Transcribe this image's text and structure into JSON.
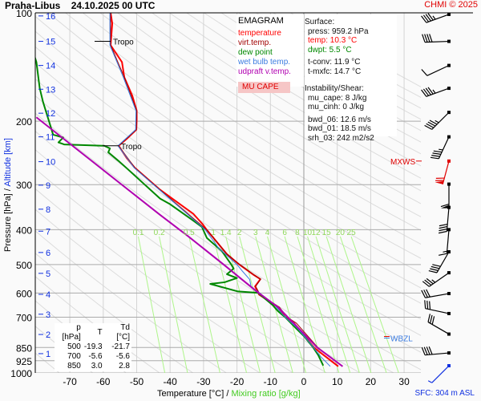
{
  "header": {
    "station": "Praha-Libus",
    "datetime": "24.10.2025 00 UTC",
    "credit": "CHMI © 2025"
  },
  "legend": {
    "title": "EMAGRAM",
    "items": [
      {
        "label": "temperature",
        "color": "#ff0000"
      },
      {
        "label": "virt.temp.",
        "color": "#a00000"
      },
      {
        "label": "dew point",
        "color": "#008800"
      },
      {
        "label": "wet bulb temp.",
        "color": "#3a7be0"
      },
      {
        "label": "udpraft v.temp.",
        "color": "#b000b0"
      }
    ],
    "mu_cape_label": "MU CAPE"
  },
  "info": {
    "surface_title": "Surface:",
    "press": "press: 959.2 hPa",
    "temp": "temp: 10.3 °C",
    "dwpt": "dwpt: 5.5 °C",
    "tconv": "t-conv: 11.9 °C",
    "tmxfc": "t-mxfc: 14.7 °C",
    "instab_title": "Instability/Shear:",
    "mu_cape": "mu_cape: 8 J/kg",
    "mu_cinh": "mu_cinh: 0 J/kg",
    "bwd_06": "bwd_06: 12.6 m/s",
    "bwd_01": "bwd_01: 18.5 m/s",
    "srh_03": "srh_03: 242 m2/s2"
  },
  "table": {
    "headers": [
      "p [hPa]",
      "T",
      "Td [°C]"
    ],
    "rows": [
      [
        "500",
        "-19.3",
        "-21.7"
      ],
      [
        "700",
        "-5.6",
        "-5.6"
      ],
      [
        "850",
        "3.0",
        "2.8"
      ]
    ]
  },
  "labels": {
    "xlabel_temp": "Temperature [°C]",
    "xlabel_sep": " / ",
    "xlabel_mix": "Mixing ratio [g/kg]",
    "ylabel_p": "Pressure [hPa]",
    "ylabel_sep": " / ",
    "ylabel_alt": "Altitude [km]",
    "sfc": "SFC: 304 m ASL",
    "mxws": "MXWS",
    "wbzl": "WBZL",
    "tropo": "Tropo"
  },
  "chart_data": {
    "type": "line",
    "title": "EMAGRAM",
    "xlabel": "Temperature [°C] / Mixing ratio [g/kg]",
    "ylabel": "Pressure [hPa] / Altitude [km]",
    "xlim": [
      -80.3,
      35
    ],
    "ylim": [
      1000,
      100
    ],
    "yscale": "log",
    "xticks": [
      -70,
      -60,
      -50,
      -40,
      -30,
      -20,
      -10,
      0,
      10,
      20,
      30
    ],
    "yticks": [
      100,
      200,
      300,
      400,
      500,
      600,
      700,
      850,
      925,
      1000
    ],
    "altitude_ticks": [
      {
        "km": 1,
        "p": 884
      },
      {
        "km": 2,
        "p": 782
      },
      {
        "km": 3,
        "p": 687
      },
      {
        "km": 4,
        "p": 605
      },
      {
        "km": 5,
        "p": 529
      },
      {
        "km": 6,
        "p": 463
      },
      {
        "km": 7,
        "p": 404
      },
      {
        "km": 8,
        "p": 351
      },
      {
        "km": 9,
        "p": 301
      },
      {
        "km": 10,
        "p": 259
      },
      {
        "km": 11,
        "p": 221
      },
      {
        "km": 12,
        "p": 190
      },
      {
        "km": 13,
        "p": 163
      },
      {
        "km": 14,
        "p": 140
      },
      {
        "km": 15,
        "p": 120
      },
      {
        "km": 16,
        "p": 102
      }
    ],
    "mixing_ratio_lines": [
      0.1,
      0.2,
      0.5,
      1,
      1.4,
      2,
      3,
      4,
      6,
      8,
      10,
      12,
      15,
      20,
      25
    ],
    "tropopause": [
      234,
      120
    ],
    "mxws_p": 258,
    "wbzl_p": 800,
    "series": [
      {
        "name": "temperature",
        "color": "#ff0000",
        "width": 2,
        "points": [
          [
            959,
            10.3
          ],
          [
            850,
            3.0
          ],
          [
            728,
            -2.9
          ],
          [
            700,
            -5.6
          ],
          [
            657,
            -7.7
          ],
          [
            606,
            -13.4
          ],
          [
            575,
            -14.6
          ],
          [
            549,
            -13
          ],
          [
            535,
            -14.9
          ],
          [
            500,
            -19.3
          ],
          [
            468,
            -23
          ],
          [
            401,
            -29
          ],
          [
            387,
            -30.2
          ],
          [
            362,
            -33
          ],
          [
            310,
            -43
          ],
          [
            269,
            -50.6
          ],
          [
            253,
            -53
          ],
          [
            234,
            -55.4
          ],
          [
            224,
            -53
          ],
          [
            211,
            -50.1
          ],
          [
            198,
            -50
          ],
          [
            187,
            -50
          ],
          [
            170,
            -51.3
          ],
          [
            151,
            -53.7
          ],
          [
            137,
            -54.4
          ],
          [
            123,
            -57.8
          ],
          [
            107,
            -57.3
          ],
          [
            100,
            -57.8
          ]
        ]
      },
      {
        "name": "virt.temp.",
        "color": "#a00000",
        "width": 1,
        "points": [
          [
            959,
            11.6
          ],
          [
            850,
            4.2
          ],
          [
            728,
            -2.2
          ],
          [
            700,
            -5.0
          ],
          [
            657,
            -7.3
          ],
          [
            606,
            -13.1
          ],
          [
            575,
            -14.4
          ],
          [
            549,
            -12.9
          ],
          [
            535,
            -14.8
          ],
          [
            500,
            -19.2
          ],
          [
            468,
            -23
          ],
          [
            401,
            -29
          ],
          [
            310,
            -43
          ],
          [
            269,
            -50.6
          ],
          [
            234,
            -55.4
          ],
          [
            211,
            -50.1
          ],
          [
            187,
            -50
          ],
          [
            151,
            -53.7
          ],
          [
            123,
            -57.8
          ],
          [
            100,
            -57.8
          ]
        ]
      },
      {
        "name": "dew point",
        "color": "#008800",
        "width": 2,
        "points": [
          [
            954,
            5.8
          ],
          [
            892,
            4.3
          ],
          [
            850,
            2.8
          ],
          [
            793,
            0.2
          ],
          [
            754,
            -2.2
          ],
          [
            700,
            -5.6
          ],
          [
            674,
            -7.7
          ],
          [
            647,
            -9.4
          ],
          [
            599,
            -13.7
          ],
          [
            594,
            -19.7
          ],
          [
            566,
            -28
          ],
          [
            560,
            -23.7
          ],
          [
            545,
            -20
          ],
          [
            532,
            -23
          ],
          [
            513,
            -21
          ],
          [
            500,
            -21.7
          ],
          [
            459,
            -24.5
          ],
          [
            422,
            -29
          ],
          [
            393,
            -30.5
          ],
          [
            378,
            -33
          ],
          [
            340,
            -40
          ],
          [
            328,
            -43
          ],
          [
            270,
            -53
          ],
          [
            257,
            -55.6
          ],
          [
            244,
            -58.5
          ],
          [
            238,
            -58
          ],
          [
            234,
            -59.7
          ],
          [
            232,
            -71.7
          ],
          [
            229,
            -73.4
          ],
          [
            222,
            -72
          ],
          [
            218,
            -75
          ],
          [
            206,
            -75.8
          ],
          [
            177,
            -78
          ],
          [
            162,
            -79
          ],
          [
            137,
            -80
          ],
          [
            128,
            -81
          ]
        ]
      },
      {
        "name": "wet bulb temp.",
        "color": "#3a7be0",
        "width": 1,
        "points": [
          [
            959,
            7.9
          ],
          [
            900,
            5.0
          ],
          [
            850,
            2.9
          ],
          [
            800,
            0.6
          ],
          [
            750,
            -2
          ],
          [
            700,
            -5.6
          ],
          [
            650,
            -8.6
          ],
          [
            600,
            -13.2
          ],
          [
            575,
            -15.8
          ],
          [
            550,
            -16.2
          ],
          [
            520,
            -18.5
          ],
          [
            500,
            -20
          ],
          [
            450,
            -25.5
          ],
          [
            400,
            -29.5
          ],
          [
            310,
            -43.2
          ],
          [
            269,
            -50.8
          ],
          [
            234,
            -55.6
          ],
          [
            211,
            -50.3
          ],
          [
            187,
            -50.2
          ],
          [
            151,
            -54
          ],
          [
            123,
            -58
          ],
          [
            100,
            -58
          ]
        ]
      },
      {
        "name": "udpraft v.temp.",
        "color": "#b000b0",
        "width": 2,
        "points": [
          [
            959,
            11.6
          ],
          [
            850,
            4.0
          ],
          [
            700,
            -4.8
          ],
          [
            657,
            -7.7
          ],
          [
            594,
            -14.1
          ],
          [
            500,
            -24
          ],
          [
            418,
            -34.5
          ],
          [
            364,
            -43
          ],
          [
            195,
            -80
          ]
        ]
      }
    ],
    "wind_barbs": [
      {
        "p": 101,
        "dir": 250,
        "kt": 45
      },
      {
        "p": 120,
        "dir": 268,
        "kt": 40
      },
      {
        "p": 140,
        "dir": 245,
        "kt": 10
      },
      {
        "p": 162,
        "dir": 250,
        "kt": 45
      },
      {
        "p": 189,
        "dir": 225,
        "kt": 45
      },
      {
        "p": 221,
        "dir": 205,
        "kt": 45
      },
      {
        "p": 258,
        "dir": 195,
        "kt": 70,
        "color": "#e00000"
      },
      {
        "p": 299,
        "dir": 180,
        "kt": 60
      },
      {
        "p": 347,
        "dir": 185,
        "kt": 40
      },
      {
        "p": 400,
        "dir": 185,
        "kt": 15
      },
      {
        "p": 461,
        "dir": 210,
        "kt": 40
      },
      {
        "p": 527,
        "dir": 235,
        "kt": 35
      },
      {
        "p": 602,
        "dir": 260,
        "kt": 30
      },
      {
        "p": 684,
        "dir": 282,
        "kt": 30
      },
      {
        "p": 780,
        "dir": 300,
        "kt": 30
      },
      {
        "p": 880,
        "dir": 265,
        "kt": 40
      },
      {
        "p": 955,
        "dir": 225,
        "kt": 5,
        "color": "#1030e0"
      }
    ]
  }
}
